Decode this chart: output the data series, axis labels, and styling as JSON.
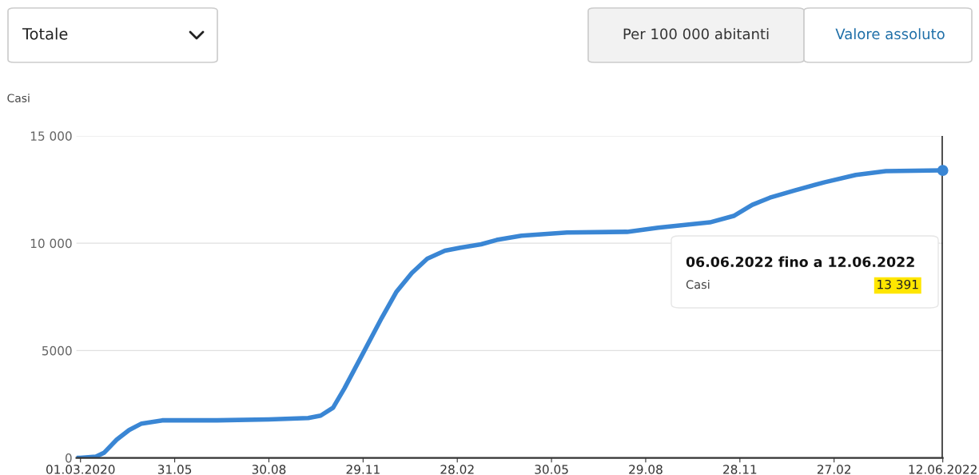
{
  "chart_data": {
    "type": "line",
    "ylabel": "Casi",
    "x": [
      "2020-02-27",
      "2020-03-01",
      "2020-03-16",
      "2020-03-24",
      "2020-04-05",
      "2020-04-17",
      "2020-04-29",
      "2020-05-19",
      "2020-07-11",
      "2020-08-30",
      "2020-10-07",
      "2020-10-19",
      "2020-10-31",
      "2020-11-11",
      "2020-11-29",
      "2020-12-17",
      "2020-12-31",
      "2021-01-15",
      "2021-01-30",
      "2021-02-16",
      "2021-03-03",
      "2021-03-23",
      "2021-04-07",
      "2021-05-01",
      "2021-06-14",
      "2021-08-11",
      "2021-09-10",
      "2021-10-30",
      "2021-11-22",
      "2021-12-10",
      "2021-12-27",
      "2022-01-20",
      "2022-02-18",
      "2022-03-20",
      "2022-04-18",
      "2022-06-12"
    ],
    "series": [
      {
        "color": "#3a86d4",
        "values": [
          0,
          0,
          60,
          250,
          850,
          1300,
          1600,
          1750,
          1750,
          1790,
          1860,
          1970,
          2340,
          3240,
          4880,
          6520,
          7720,
          8610,
          9280,
          9650,
          9790,
          9950,
          10150,
          10350,
          10500,
          10530,
          10720,
          10970,
          11270,
          11790,
          12120,
          12460,
          12840,
          13180,
          13360,
          13391
        ]
      }
    ],
    "xlim": [
      "2020-02-26",
      "2022-06-12"
    ],
    "xticks": [
      {
        "value": "2020-03-01",
        "label": "01.03.2020"
      },
      {
        "value": "2020-05-31",
        "label": "31.05"
      },
      {
        "value": "2020-08-30",
        "label": "30.08"
      },
      {
        "value": "2020-11-29",
        "label": "29.11"
      },
      {
        "value": "2021-02-28",
        "label": "28.02"
      },
      {
        "value": "2021-05-30",
        "label": "30.05"
      },
      {
        "value": "2021-08-29",
        "label": "29.08"
      },
      {
        "value": "2021-11-28",
        "label": "28.11"
      },
      {
        "value": "2022-02-27",
        "label": "27.02"
      },
      {
        "value": "2022-06-12",
        "label": "12.06.2022"
      }
    ],
    "ylim": [
      0,
      15000
    ],
    "yticks": [
      0,
      {
        "value": 5000,
        "label": "5000"
      },
      {
        "value": 10000,
        "label": "10 000"
      },
      {
        "value": 15000,
        "label": "15 000"
      }
    ],
    "grid": "y",
    "line_style": "solid",
    "ref_lines": [
      {
        "axis": "x",
        "value": "2022-06-12",
        "color": "#000000"
      }
    ],
    "annotations": [
      "Totale",
      "Per 100 000 abitanti",
      "Valore assoluto",
      "06.06.2022 fino a 12.06.2022",
      "Casi",
      "13 391"
    ]
  }
}
